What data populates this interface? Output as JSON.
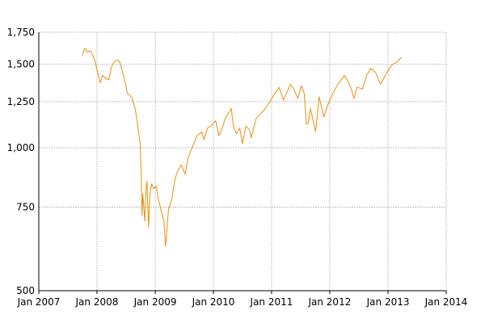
{
  "chart_data": {
    "type": "line",
    "title": "",
    "xlabel": "",
    "ylabel": "",
    "y_scale": "log",
    "grid": true,
    "legend": "none",
    "line_color": "#E8900C",
    "grid_color": "#b8b8b8",
    "axis_color": "#000000",
    "xlim": [
      "2007-01-01",
      "2014-01-01"
    ],
    "ylim": [
      500,
      1750
    ],
    "y_ticks": [
      {
        "value": 500,
        "label": "500"
      },
      {
        "value": 750,
        "label": "750"
      },
      {
        "value": 1000,
        "label": "1,000"
      },
      {
        "value": 1250,
        "label": "1,250"
      },
      {
        "value": 1500,
        "label": "1,500"
      },
      {
        "value": 1750,
        "label": "1,750"
      }
    ],
    "x_ticks": [
      {
        "value": "2007-01-01",
        "label": "Jan 2007"
      },
      {
        "value": "2008-01-01",
        "label": "Jan 2008"
      },
      {
        "value": "2009-01-01",
        "label": "Jan 2009"
      },
      {
        "value": "2010-01-01",
        "label": "Jan 2010"
      },
      {
        "value": "2011-01-01",
        "label": "Jan 2011"
      },
      {
        "value": "2012-01-01",
        "label": "Jan 2012"
      },
      {
        "value": "2013-01-01",
        "label": "Jan 2013"
      },
      {
        "value": "2014-01-01",
        "label": "Jan 2014"
      }
    ],
    "series": [
      {
        "points": [
          [
            "2007-10-01",
            1560
          ],
          [
            "2007-10-15",
            1620
          ],
          [
            "2007-11-01",
            1590
          ],
          [
            "2007-11-20",
            1600
          ],
          [
            "2007-12-01",
            1580
          ],
          [
            "2007-12-20",
            1520
          ],
          [
            "2008-01-10",
            1420
          ],
          [
            "2008-01-22",
            1370
          ],
          [
            "2008-02-05",
            1420
          ],
          [
            "2008-02-25",
            1400
          ],
          [
            "2008-03-15",
            1390
          ],
          [
            "2008-04-01",
            1480
          ],
          [
            "2008-04-20",
            1520
          ],
          [
            "2008-05-10",
            1530
          ],
          [
            "2008-05-25",
            1510
          ],
          [
            "2008-06-10",
            1440
          ],
          [
            "2008-06-25",
            1380
          ],
          [
            "2008-07-10",
            1300
          ],
          [
            "2008-07-25",
            1290
          ],
          [
            "2008-08-10",
            1270
          ],
          [
            "2008-08-30",
            1200
          ],
          [
            "2008-09-15",
            1100
          ],
          [
            "2008-09-29",
            1010
          ],
          [
            "2008-10-05",
            870
          ],
          [
            "2008-10-10",
            720
          ],
          [
            "2008-10-15",
            800
          ],
          [
            "2008-10-27",
            700
          ],
          [
            "2008-11-05",
            830
          ],
          [
            "2008-11-10",
            850
          ],
          [
            "2008-11-20",
            680
          ],
          [
            "2008-11-28",
            800
          ],
          [
            "2008-12-10",
            840
          ],
          [
            "2008-12-20",
            820
          ],
          [
            "2009-01-06",
            830
          ],
          [
            "2009-01-20",
            780
          ],
          [
            "2009-02-10",
            730
          ],
          [
            "2009-02-25",
            700
          ],
          [
            "2009-03-06",
            620
          ],
          [
            "2009-03-10",
            640
          ],
          [
            "2009-03-25",
            740
          ],
          [
            "2009-04-15",
            780
          ],
          [
            "2009-05-05",
            860
          ],
          [
            "2009-05-20",
            890
          ],
          [
            "2009-06-12",
            920
          ],
          [
            "2009-07-08",
            880
          ],
          [
            "2009-07-25",
            950
          ],
          [
            "2009-08-20",
            1000
          ],
          [
            "2009-09-20",
            1060
          ],
          [
            "2009-10-20",
            1080
          ],
          [
            "2009-11-02",
            1040
          ],
          [
            "2009-11-25",
            1100
          ],
          [
            "2009-12-15",
            1110
          ],
          [
            "2010-01-15",
            1140
          ],
          [
            "2010-02-05",
            1060
          ],
          [
            "2010-02-25",
            1100
          ],
          [
            "2010-03-15",
            1150
          ],
          [
            "2010-04-23",
            1210
          ],
          [
            "2010-05-06",
            1110
          ],
          [
            "2010-05-25",
            1070
          ],
          [
            "2010-06-15",
            1100
          ],
          [
            "2010-07-02",
            1020
          ],
          [
            "2010-07-25",
            1110
          ],
          [
            "2010-08-15",
            1090
          ],
          [
            "2010-08-27",
            1050
          ],
          [
            "2010-09-25",
            1150
          ],
          [
            "2010-10-25",
            1180
          ],
          [
            "2010-11-15",
            1200
          ],
          [
            "2010-12-15",
            1240
          ],
          [
            "2011-01-15",
            1290
          ],
          [
            "2011-02-18",
            1340
          ],
          [
            "2011-03-16",
            1260
          ],
          [
            "2011-04-29",
            1360
          ],
          [
            "2011-05-20",
            1330
          ],
          [
            "2011-06-15",
            1270
          ],
          [
            "2011-07-07",
            1350
          ],
          [
            "2011-07-25",
            1300
          ],
          [
            "2011-08-08",
            1120
          ],
          [
            "2011-08-20",
            1130
          ],
          [
            "2011-09-01",
            1210
          ],
          [
            "2011-09-22",
            1130
          ],
          [
            "2011-10-04",
            1080
          ],
          [
            "2011-10-27",
            1280
          ],
          [
            "2011-11-25",
            1160
          ],
          [
            "2011-12-15",
            1220
          ],
          [
            "2012-01-15",
            1290
          ],
          [
            "2012-02-15",
            1350
          ],
          [
            "2012-04-02",
            1420
          ],
          [
            "2012-04-25",
            1380
          ],
          [
            "2012-05-15",
            1330
          ],
          [
            "2012-06-01",
            1270
          ],
          [
            "2012-06-20",
            1340
          ],
          [
            "2012-07-25",
            1330
          ],
          [
            "2012-08-20",
            1420
          ],
          [
            "2012-09-14",
            1470
          ],
          [
            "2012-10-15",
            1440
          ],
          [
            "2012-11-15",
            1360
          ],
          [
            "2012-12-15",
            1420
          ],
          [
            "2013-01-10",
            1470
          ],
          [
            "2013-01-30",
            1500
          ],
          [
            "2013-02-20",
            1510
          ],
          [
            "2013-03-10",
            1530
          ],
          [
            "2013-03-25",
            1550
          ]
        ]
      }
    ]
  }
}
